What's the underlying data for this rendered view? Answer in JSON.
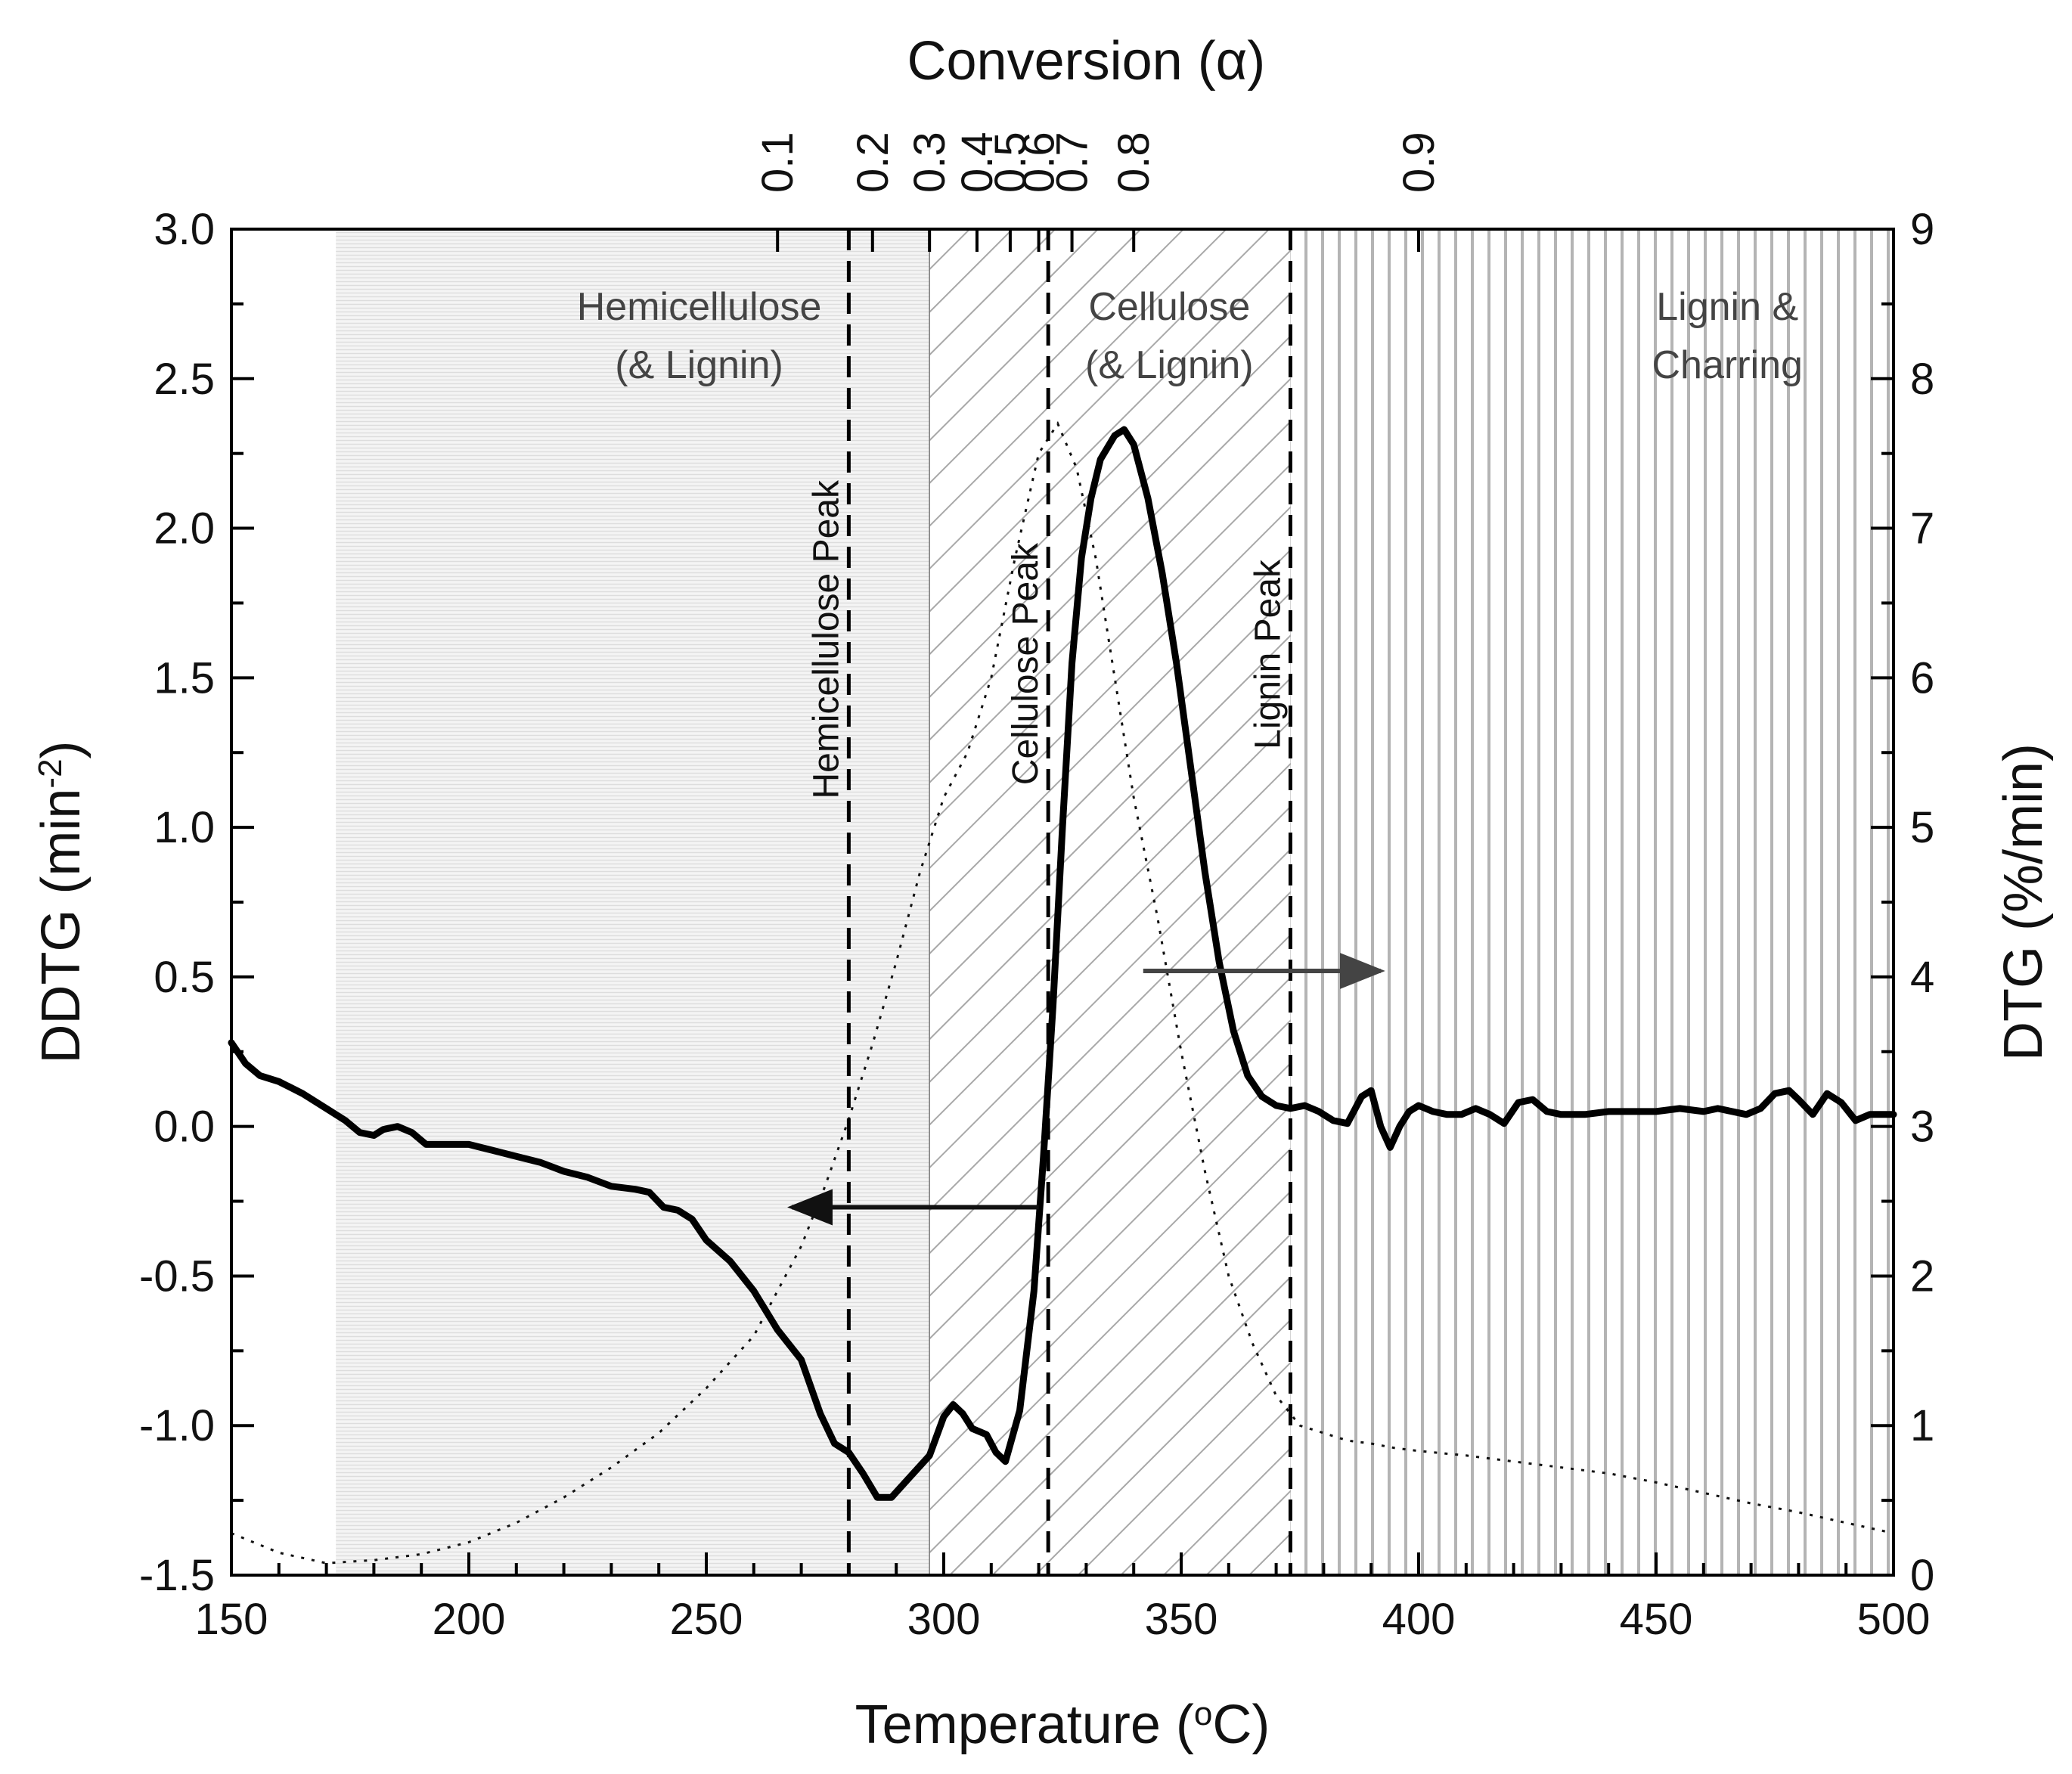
{
  "chart_data": {
    "type": "line",
    "title": "",
    "top_axis": {
      "label": "Conversion (α)",
      "ticks": [
        {
          "label": "0.1",
          "temp": 265
        },
        {
          "label": "0.2",
          "temp": 285
        },
        {
          "label": "0.3",
          "temp": 297
        },
        {
          "label": "0.4",
          "temp": 307
        },
        {
          "label": "0.5",
          "temp": 314
        },
        {
          "label": "0.6",
          "temp": 320
        },
        {
          "label": "0.7",
          "temp": 327
        },
        {
          "label": "0.8",
          "temp": 340
        },
        {
          "label": "0.9",
          "temp": 400
        }
      ]
    },
    "x_axis": {
      "label_main": "Temperature (",
      "label_sup": "o",
      "label_tail": "C)",
      "range": [
        150,
        500
      ],
      "ticks": [
        "150",
        "200",
        "250",
        "300",
        "350",
        "400",
        "450",
        "500"
      ],
      "tick_values": [
        150,
        200,
        250,
        300,
        350,
        400,
        450,
        500
      ]
    },
    "y_axis_left": {
      "label_main": "DDTG (min",
      "label_sup": "-2",
      "label_tail": ")",
      "range": [
        -1.5,
        3.0
      ],
      "ticks": [
        "-1.5",
        "-1.0",
        "-0.5",
        "0.0",
        "0.5",
        "1.0",
        "1.5",
        "2.0",
        "2.5",
        "3.0"
      ],
      "tick_values": [
        -1.5,
        -1.0,
        -0.5,
        0.0,
        0.5,
        1.0,
        1.5,
        2.0,
        2.5,
        3.0
      ]
    },
    "y_axis_right": {
      "label": "DTG (%/min)",
      "range": [
        0,
        9
      ],
      "ticks": [
        "0",
        "1",
        "2",
        "3",
        "4",
        "5",
        "6",
        "7",
        "8",
        "9"
      ],
      "tick_values": [
        0,
        1,
        2,
        3,
        4,
        5,
        6,
        7,
        8,
        9
      ]
    },
    "regions": [
      {
        "name": "hemicellulose",
        "line1": "Hemicellulose",
        "line2": "(& Lignin)",
        "from": 172,
        "to": 297,
        "fill": "horizontal-lines"
      },
      {
        "name": "cellulose",
        "line1": "Cellulose",
        "line2": "(& Lignin)",
        "from": 297,
        "to": 373,
        "fill": "diagonal-hatch"
      },
      {
        "name": "lignin",
        "line1": "Lignin &",
        "line2": "Charring",
        "from": 373,
        "to": 500,
        "fill": "vertical-lines"
      }
    ],
    "peaks": [
      {
        "label": "Hemicellulose Peak",
        "temp": 280
      },
      {
        "label": "Cellulose Peak",
        "temp": 322
      },
      {
        "label": "Lignin Peak",
        "temp": 373
      }
    ],
    "series": [
      {
        "name": "DDTG",
        "axis": "left",
        "style": "solid",
        "points": [
          [
            150,
            0.28
          ],
          [
            153,
            0.21
          ],
          [
            156,
            0.17
          ],
          [
            160,
            0.15
          ],
          [
            165,
            0.11
          ],
          [
            170,
            0.06
          ],
          [
            174,
            0.02
          ],
          [
            177,
            -0.02
          ],
          [
            180,
            -0.03
          ],
          [
            182,
            -0.01
          ],
          [
            185,
            0.0
          ],
          [
            188,
            -0.02
          ],
          [
            191,
            -0.06
          ],
          [
            195,
            -0.06
          ],
          [
            200,
            -0.06
          ],
          [
            205,
            -0.08
          ],
          [
            210,
            -0.1
          ],
          [
            215,
            -0.12
          ],
          [
            220,
            -0.15
          ],
          [
            225,
            -0.17
          ],
          [
            230,
            -0.2
          ],
          [
            235,
            -0.21
          ],
          [
            238,
            -0.22
          ],
          [
            241,
            -0.27
          ],
          [
            244,
            -0.28
          ],
          [
            247,
            -0.31
          ],
          [
            250,
            -0.38
          ],
          [
            255,
            -0.45
          ],
          [
            260,
            -0.55
          ],
          [
            265,
            -0.68
          ],
          [
            270,
            -0.78
          ],
          [
            274,
            -0.96
          ],
          [
            277,
            -1.06
          ],
          [
            280,
            -1.09
          ],
          [
            283,
            -1.16
          ],
          [
            286,
            -1.24
          ],
          [
            289,
            -1.24
          ],
          [
            293,
            -1.17
          ],
          [
            297,
            -1.1
          ],
          [
            300,
            -0.97
          ],
          [
            302,
            -0.93
          ],
          [
            304,
            -0.96
          ],
          [
            306,
            -1.01
          ],
          [
            309,
            -1.03
          ],
          [
            311,
            -1.09
          ],
          [
            313,
            -1.12
          ],
          [
            316,
            -0.95
          ],
          [
            319,
            -0.55
          ],
          [
            321,
            -0.1
          ],
          [
            323,
            0.4
          ],
          [
            325,
            1.0
          ],
          [
            327,
            1.55
          ],
          [
            329,
            1.9
          ],
          [
            331,
            2.1
          ],
          [
            333,
            2.23
          ],
          [
            336,
            2.31
          ],
          [
            338,
            2.33
          ],
          [
            340,
            2.28
          ],
          [
            343,
            2.1
          ],
          [
            346,
            1.85
          ],
          [
            349,
            1.55
          ],
          [
            352,
            1.2
          ],
          [
            355,
            0.85
          ],
          [
            358,
            0.55
          ],
          [
            361,
            0.32
          ],
          [
            364,
            0.17
          ],
          [
            367,
            0.1
          ],
          [
            370,
            0.07
          ],
          [
            373,
            0.06
          ],
          [
            376,
            0.07
          ],
          [
            379,
            0.05
          ],
          [
            382,
            0.02
          ],
          [
            385,
            0.01
          ],
          [
            388,
            0.1
          ],
          [
            390,
            0.12
          ],
          [
            392,
            0.0
          ],
          [
            394,
            -0.07
          ],
          [
            396,
            0.0
          ],
          [
            398,
            0.05
          ],
          [
            400,
            0.07
          ],
          [
            403,
            0.05
          ],
          [
            406,
            0.04
          ],
          [
            409,
            0.04
          ],
          [
            412,
            0.06
          ],
          [
            415,
            0.04
          ],
          [
            418,
            0.01
          ],
          [
            421,
            0.08
          ],
          [
            424,
            0.09
          ],
          [
            427,
            0.05
          ],
          [
            430,
            0.04
          ],
          [
            435,
            0.04
          ],
          [
            440,
            0.05
          ],
          [
            445,
            0.05
          ],
          [
            450,
            0.05
          ],
          [
            455,
            0.06
          ],
          [
            460,
            0.05
          ],
          [
            463,
            0.06
          ],
          [
            466,
            0.05
          ],
          [
            469,
            0.04
          ],
          [
            472,
            0.06
          ],
          [
            475,
            0.11
          ],
          [
            478,
            0.12
          ],
          [
            480,
            0.09
          ],
          [
            483,
            0.04
          ],
          [
            486,
            0.11
          ],
          [
            489,
            0.08
          ],
          [
            492,
            0.02
          ],
          [
            495,
            0.04
          ],
          [
            498,
            0.04
          ],
          [
            500,
            0.04
          ]
        ]
      },
      {
        "name": "DTG",
        "axis": "right",
        "style": "dotted",
        "points": [
          [
            150,
            0.28
          ],
          [
            160,
            0.15
          ],
          [
            170,
            0.08
          ],
          [
            180,
            0.1
          ],
          [
            190,
            0.14
          ],
          [
            200,
            0.22
          ],
          [
            210,
            0.35
          ],
          [
            220,
            0.52
          ],
          [
            230,
            0.72
          ],
          [
            240,
            0.95
          ],
          [
            250,
            1.25
          ],
          [
            260,
            1.6
          ],
          [
            265,
            1.9
          ],
          [
            270,
            2.2
          ],
          [
            275,
            2.6
          ],
          [
            280,
            3.05
          ],
          [
            285,
            3.55
          ],
          [
            290,
            4.1
          ],
          [
            295,
            4.7
          ],
          [
            300,
            5.2
          ],
          [
            305,
            5.5
          ],
          [
            310,
            6.0
          ],
          [
            315,
            6.8
          ],
          [
            320,
            7.5
          ],
          [
            324,
            7.7
          ],
          [
            328,
            7.4
          ],
          [
            332,
            6.8
          ],
          [
            336,
            6.0
          ],
          [
            340,
            5.2
          ],
          [
            345,
            4.4
          ],
          [
            350,
            3.5
          ],
          [
            355,
            2.7
          ],
          [
            360,
            2.0
          ],
          [
            365,
            1.55
          ],
          [
            370,
            1.2
          ],
          [
            375,
            1.0
          ],
          [
            380,
            0.95
          ],
          [
            385,
            0.9
          ],
          [
            390,
            0.88
          ],
          [
            395,
            0.85
          ],
          [
            400,
            0.83
          ],
          [
            410,
            0.8
          ],
          [
            420,
            0.76
          ],
          [
            430,
            0.72
          ],
          [
            440,
            0.68
          ],
          [
            450,
            0.62
          ],
          [
            460,
            0.55
          ],
          [
            470,
            0.48
          ],
          [
            480,
            0.42
          ],
          [
            490,
            0.35
          ],
          [
            500,
            0.28
          ]
        ]
      }
    ],
    "arrows": [
      {
        "name": "left-axis-arrow",
        "from_temp": 320,
        "to_temp": 268,
        "y_left": -0.27
      },
      {
        "name": "right-axis-arrow",
        "from_temp": 342,
        "to_temp": 392,
        "y_left": 0.52
      }
    ]
  }
}
